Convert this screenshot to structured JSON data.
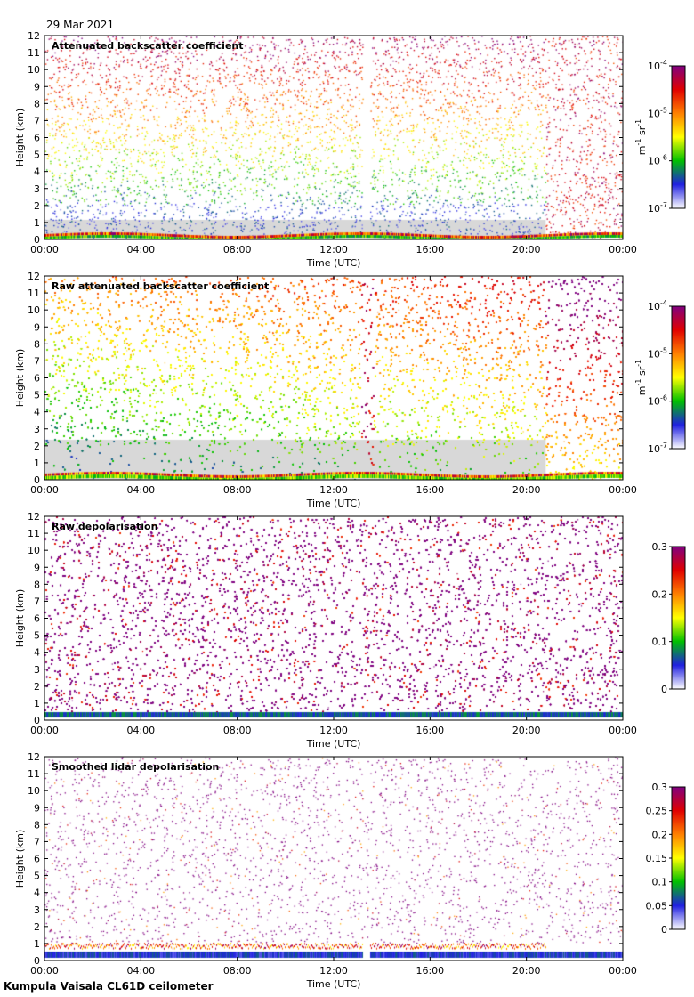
{
  "date": "29 Mar 2021",
  "footer": "Kumpula Vaisala CL61D ceilometer",
  "colormap": [
    "#ffffff",
    "#2020e0",
    "#00c000",
    "#ffff00",
    "#ff8000",
    "#e00000",
    "#800080"
  ],
  "chart_data": [
    {
      "type": "heatmap",
      "title": "Attenuated backscatter coefficient",
      "xlabel": "Time (UTC)",
      "ylabel": "Height (km)",
      "xticks": [
        "00:00",
        "04:00",
        "08:00",
        "12:00",
        "16:00",
        "20:00",
        "00:00"
      ],
      "xlim": [
        0,
        24
      ],
      "ylim": [
        0,
        12
      ],
      "yticks": [
        "0",
        "1",
        "2",
        "3",
        "4",
        "5",
        "6",
        "7",
        "8",
        "9",
        "10",
        "11",
        "12"
      ],
      "colorbar": {
        "scale": "log",
        "range": [
          1e-07,
          0.0001
        ],
        "ticks": [
          {
            "base": "10",
            "exp": "-4",
            "value": 0.0001
          },
          {
            "base": "10",
            "exp": "-5",
            "value": 1e-05
          },
          {
            "base": "10",
            "exp": "-6",
            "value": 1e-06
          },
          {
            "base": "10",
            "exp": "-7",
            "value": 1e-07
          }
        ],
        "unit_base": [
          "m",
          "sr"
        ],
        "unit_exp": [
          "-1",
          "-1"
        ]
      }
    },
    {
      "type": "heatmap",
      "title": "Raw attenuated backscatter coefficient",
      "xlabel": "Time (UTC)",
      "ylabel": "Height (km)",
      "xticks": [
        "00:00",
        "04:00",
        "08:00",
        "12:00",
        "16:00",
        "20:00",
        "00:00"
      ],
      "xlim": [
        0,
        24
      ],
      "ylim": [
        0,
        12
      ],
      "yticks": [
        "0",
        "1",
        "2",
        "3",
        "4",
        "5",
        "6",
        "7",
        "8",
        "9",
        "10",
        "11",
        "12"
      ],
      "colorbar": {
        "scale": "log",
        "range": [
          1e-07,
          0.0001
        ],
        "ticks": [
          {
            "base": "10",
            "exp": "-4",
            "value": 0.0001
          },
          {
            "base": "10",
            "exp": "-5",
            "value": 1e-05
          },
          {
            "base": "10",
            "exp": "-6",
            "value": 1e-06
          },
          {
            "base": "10",
            "exp": "-7",
            "value": 1e-07
          }
        ],
        "unit_base": [
          "m",
          "sr"
        ],
        "unit_exp": [
          "-1",
          "-1"
        ]
      }
    },
    {
      "type": "heatmap",
      "title": "Raw depolarisation",
      "xlabel": "Time (UTC)",
      "ylabel": "Height (km)",
      "xticks": [
        "00:00",
        "04:00",
        "08:00",
        "12:00",
        "16:00",
        "20:00",
        "00:00"
      ],
      "xlim": [
        0,
        24
      ],
      "ylim": [
        0,
        12
      ],
      "yticks": [
        "0",
        "1",
        "2",
        "3",
        "4",
        "5",
        "6",
        "7",
        "8",
        "9",
        "10",
        "11",
        "12"
      ],
      "colorbar": {
        "scale": "linear",
        "range": [
          0,
          0.3
        ],
        "ticks": [
          {
            "label": "0.3",
            "value": 0.3
          },
          {
            "label": "0.2",
            "value": 0.2
          },
          {
            "label": "0.1",
            "value": 0.1
          },
          {
            "label": "0",
            "value": 0
          }
        ]
      }
    },
    {
      "type": "heatmap",
      "title": "Smoothed lidar depolarisation",
      "xlabel": "Time (UTC)",
      "ylabel": "Height (km)",
      "xticks": [
        "00:00",
        "04:00",
        "08:00",
        "12:00",
        "16:00",
        "20:00",
        "00:00"
      ],
      "xlim": [
        0,
        24
      ],
      "ylim": [
        0,
        12
      ],
      "yticks": [
        "0",
        "1",
        "2",
        "3",
        "4",
        "5",
        "6",
        "7",
        "8",
        "9",
        "10",
        "11",
        "12"
      ],
      "colorbar": {
        "scale": "linear",
        "range": [
          0,
          0.3
        ],
        "ticks": [
          {
            "label": "0.3",
            "value": 0.3
          },
          {
            "label": "0.25",
            "value": 0.25
          },
          {
            "label": "0.2",
            "value": 0.2
          },
          {
            "label": "0.15",
            "value": 0.15
          },
          {
            "label": "0.1",
            "value": 0.1
          },
          {
            "label": "0.05",
            "value": 0.05
          },
          {
            "label": "0",
            "value": 0
          }
        ]
      }
    }
  ]
}
